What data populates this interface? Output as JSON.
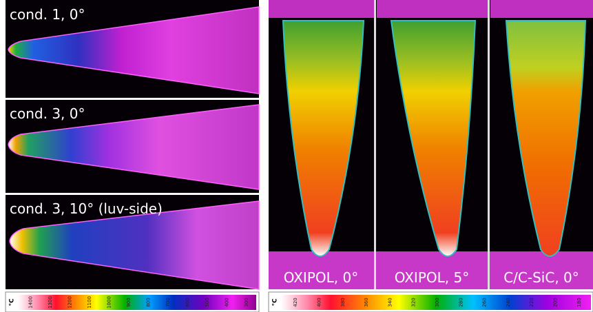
{
  "panels_left": [
    {
      "label": "cond. 1, 0°"
    },
    {
      "label": "cond. 3, 0°"
    },
    {
      "label": "cond. 3, 10° (luv-side)"
    }
  ],
  "panels_right": [
    {
      "label": "OXIPOL, 0°"
    },
    {
      "label": "OXIPOL, 5°"
    },
    {
      "label": "C/C-SiC, 0°"
    }
  ],
  "colorbar_left": {
    "unit": "°C",
    "ticks": [
      "1400",
      "1300",
      "1200",
      "1100",
      "1000",
      "900",
      "800",
      "700",
      "600",
      "500",
      "400",
      "300"
    ]
  },
  "colorbar_right": {
    "unit": "°C",
    "ticks": [
      "420",
      "400",
      "380",
      "360",
      "340",
      "320",
      "300",
      "280",
      "260",
      "240",
      "220",
      "200",
      "180"
    ]
  }
}
